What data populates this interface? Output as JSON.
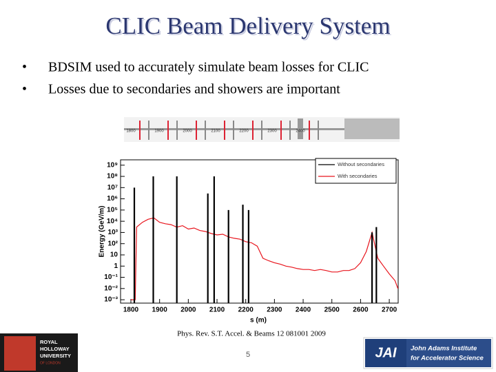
{
  "header": {
    "title": "CLIC Beam Delivery System"
  },
  "bullets": [
    "BDSIM used to accurately simulate beam losses for CLIC",
    "Losses due to secondaries and showers are important"
  ],
  "beamline": {
    "labels": [
      "1800",
      "1900",
      "2000",
      "2100",
      "2200",
      "2300",
      "2400"
    ]
  },
  "chart_data": {
    "type": "line",
    "xlabel": "s (m)",
    "ylabel": "Energy (GeV/m)",
    "log_y": true,
    "legend": "upper right",
    "xlim": [
      1764,
      2731
    ],
    "ylim": [
      0.0005,
      3000000000
    ],
    "xticks": [
      1800,
      1900,
      2000,
      2100,
      2200,
      2300,
      2400,
      2500,
      2600,
      2700
    ],
    "yticks": [
      {
        "value": 0.001,
        "label": "10⁻³"
      },
      {
        "value": 0.01,
        "label": "10⁻²"
      },
      {
        "value": 0.1,
        "label": "10⁻¹"
      },
      1,
      10,
      {
        "value": 100,
        "label": "10²"
      },
      {
        "value": 1000,
        "label": "10³"
      },
      {
        "value": 10000,
        "label": "10⁴"
      },
      {
        "value": 100000,
        "label": "10⁵"
      },
      {
        "value": 1000000,
        "label": "10⁶"
      },
      {
        "value": 10000000,
        "label": "10⁷"
      },
      {
        "value": 100000000,
        "label": "10⁸"
      },
      {
        "value": 1000000000,
        "label": "10⁹"
      }
    ],
    "series": [
      {
        "name": "Without secondaries",
        "color": "#000000",
        "mode": "impulse",
        "x": [
          1812,
          1878,
          1960,
          2068,
          2090,
          2140,
          2190,
          2210,
          2640,
          2655
        ],
        "values": [
          10000000,
          100000000,
          100000000,
          3000000,
          100000000,
          100000,
          300000,
          100000,
          1000,
          3000
        ]
      },
      {
        "name": "With secondaries",
        "color": "#e8141c",
        "x": [
          1800,
          1815,
          1820,
          1840,
          1860,
          1880,
          1900,
          1920,
          1940,
          1960,
          1980,
          2000,
          2020,
          2040,
          2060,
          2080,
          2100,
          2120,
          2140,
          2160,
          2180,
          2200,
          2220,
          2240,
          2260,
          2280,
          2300,
          2320,
          2340,
          2360,
          2380,
          2400,
          2420,
          2440,
          2460,
          2480,
          2500,
          2520,
          2540,
          2560,
          2580,
          2600,
          2620,
          2640,
          2660,
          2680,
          2700,
          2720,
          2730
        ],
        "values": [
          0.001,
          0.001,
          3000,
          8000,
          15000,
          20000,
          8000,
          6000,
          5000,
          3000,
          4000,
          2000,
          2500,
          1500,
          1200,
          800,
          600,
          700,
          400,
          300,
          250,
          150,
          120,
          60,
          5,
          3,
          2,
          1.5,
          1,
          0.8,
          0.6,
          0.5,
          0.5,
          0.4,
          0.5,
          0.4,
          0.3,
          0.3,
          0.4,
          0.4,
          0.6,
          2,
          20,
          1000,
          5,
          1,
          0.2,
          0.05,
          0.01
        ]
      }
    ]
  },
  "citation": "Phys. Rev. S.T. Accel. & Beams 12 081001 2009",
  "page": "5",
  "logos": {
    "left": [
      "ROYAL",
      "HOLLOWAY",
      "UNIVERSITY",
      "OF LONDON"
    ],
    "jai": "JAI",
    "right": [
      "John Adams Institute",
      "for Accelerator Science"
    ]
  }
}
